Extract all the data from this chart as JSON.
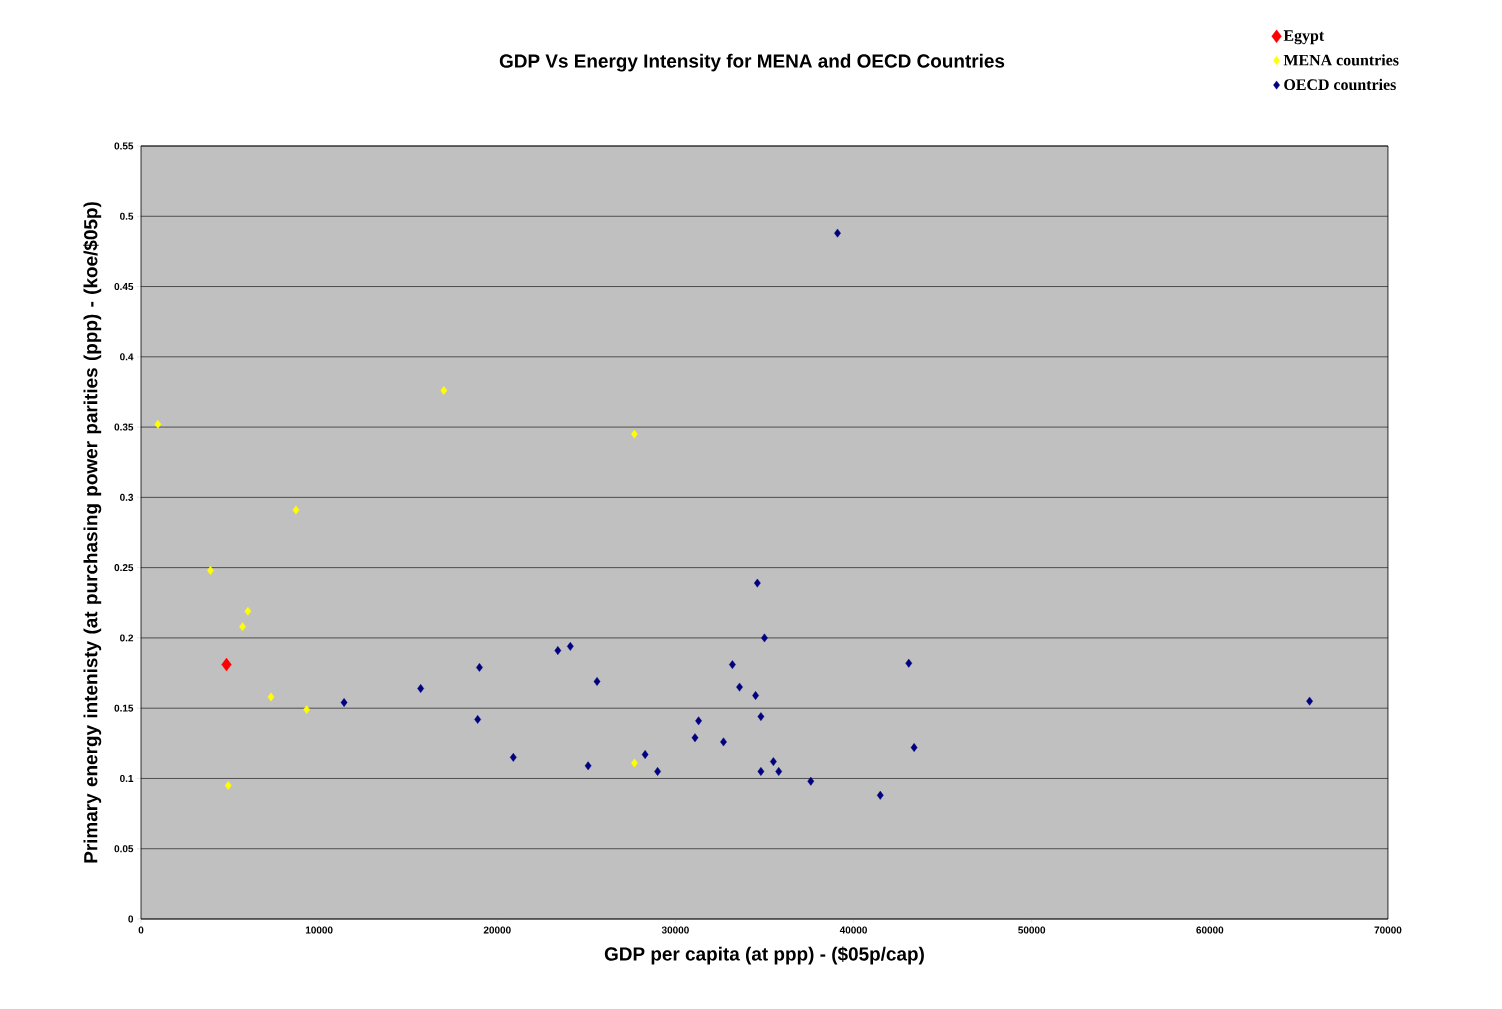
{
  "chart_data": {
    "type": "scatter",
    "title": "GDP Vs Energy Intensity for MENA and OECD Countries",
    "xlabel": "GDP per capita (at ppp) - ($05p/cap)",
    "ylabel": "Primary energy intenisty (at purchasing power parities (ppp) - (koe/$05p)",
    "xlim": [
      0,
      70000
    ],
    "ylim": [
      0,
      0.55
    ],
    "xticks": [
      0,
      10000,
      20000,
      30000,
      40000,
      50000,
      60000,
      70000
    ],
    "yticks": [
      0,
      0.05,
      0.1,
      0.15,
      0.2,
      0.25,
      0.3,
      0.35,
      0.4,
      0.45,
      0.5,
      0.55
    ],
    "grid": "y",
    "legend": "top right",
    "marker": "diamond",
    "series": [
      {
        "name": "Egypt",
        "color": "#ff0000",
        "x": [
          4800
        ],
        "values": [
          0.181
        ]
      },
      {
        "name": "MENA countries",
        "color": "#ffff00",
        "x": [
          950,
          17000,
          27700,
          8700,
          3900,
          6000,
          5700,
          7300,
          9300,
          4900,
          27700
        ],
        "values": [
          0.352,
          0.376,
          0.345,
          0.291,
          0.248,
          0.219,
          0.208,
          0.158,
          0.149,
          0.095,
          0.111
        ]
      },
      {
        "name": "OECD countries",
        "color": "#000080",
        "x": [
          39100,
          34600,
          35000,
          23400,
          24100,
          19000,
          25600,
          15700,
          11400,
          18900,
          20900,
          25100,
          28300,
          29000,
          31100,
          31300,
          32700,
          33200,
          33600,
          34500,
          34800,
          34800,
          35500,
          35800,
          37600,
          41500,
          43100,
          43400,
          65600
        ],
        "values": [
          0.488,
          0.239,
          0.2,
          0.191,
          0.194,
          0.179,
          0.169,
          0.164,
          0.154,
          0.142,
          0.115,
          0.109,
          0.117,
          0.105,
          0.129,
          0.141,
          0.126,
          0.181,
          0.165,
          0.159,
          0.144,
          0.105,
          0.112,
          0.105,
          0.098,
          0.088,
          0.182,
          0.122,
          0.155
        ]
      }
    ]
  }
}
